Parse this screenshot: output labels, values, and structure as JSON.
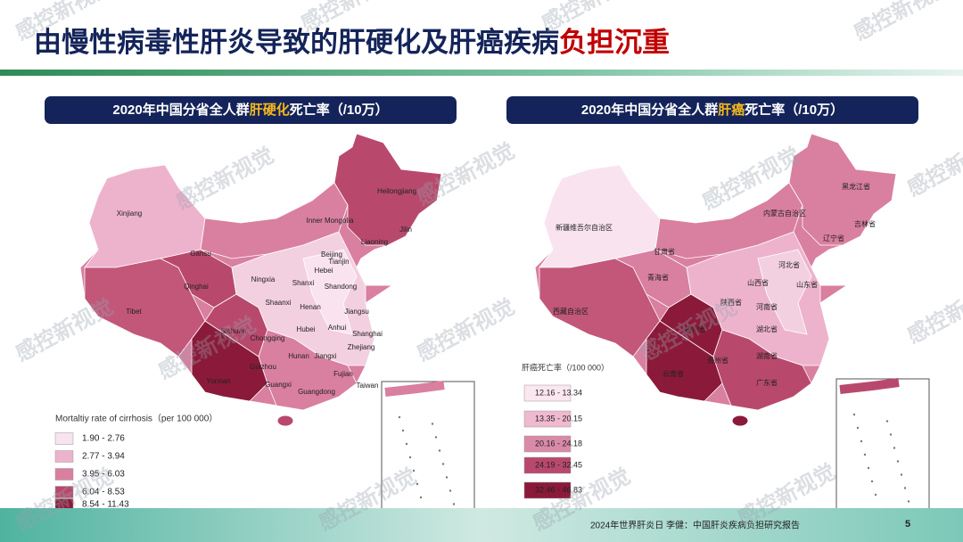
{
  "title": {
    "main": "由慢性病毒性肝炎导致的肝硬化及肝癌疾病",
    "highlight": "负担沉重"
  },
  "panels": [
    {
      "title_pre": "2020年中国分省全人群",
      "title_hl": "肝硬化",
      "title_post": "死亡率（/10万）",
      "legend_title": "Mortaltiy rate of cirrhosis（per 100 000）",
      "legend": [
        "1.90 - 2.76",
        "2.77 - 3.94",
        "3.95 - 6.03",
        "6.04 - 8.53",
        "8.54 - 11.43"
      ],
      "labels": [
        "Xinjiang",
        "Tibet",
        "Qinghai",
        "Gansu",
        "Inner Mongolia",
        "Heilongjiang",
        "Jilin",
        "Liaoning",
        "Beijing",
        "Tianjin",
        "Hebei",
        "Shanxi",
        "Shandong",
        "Ningxia",
        "Shaanxi",
        "Henan",
        "Jiangsu",
        "Anhui",
        "Shanghai",
        "Hubei",
        "Sichuan",
        "Chongqing",
        "Zhejiang",
        "Hunan",
        "Jiangxi",
        "Guizhou",
        "Fujian",
        "Yunnan",
        "Guangxi",
        "Guangdong",
        "Taiwan"
      ]
    },
    {
      "title_pre": "2020年中国分省全人群",
      "title_hl": "肝癌",
      "title_post": "死亡率（/10万）",
      "legend_title": "肝癌死亡率（/100 000）",
      "legend": [
        "12.16 - 13.34",
        "13.35 - 20.15",
        "20.16 - 24.18",
        "24.19 - 32.45",
        "32.46 - 46.83"
      ],
      "labels": [
        "新疆维吾尔自治区",
        "西藏自治区",
        "青海省",
        "甘肃省",
        "内蒙古自治区",
        "黑龙江省",
        "吉林省",
        "辽宁省",
        "河北省",
        "山西省",
        "山东省",
        "陕西省",
        "河南省",
        "四川省",
        "湖北省",
        "云南省",
        "贵州省",
        "湖南省",
        "广东省"
      ]
    }
  ],
  "watermark": "感控新视觉",
  "footer": "2024年世界肝炎日 李健：中国肝炎疾病负担研究报告",
  "page_number": "5"
}
